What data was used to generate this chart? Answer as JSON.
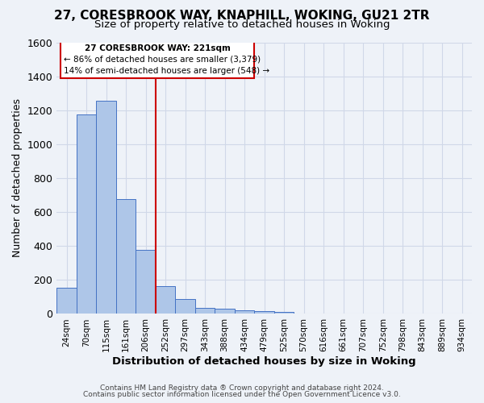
{
  "title": "27, CORESBROOK WAY, KNAPHILL, WOKING, GU21 2TR",
  "subtitle": "Size of property relative to detached houses in Woking",
  "xlabel": "Distribution of detached houses by size in Woking",
  "ylabel": "Number of detached properties",
  "bar_values": [
    155,
    1175,
    1255,
    675,
    375,
    165,
    90,
    35,
    30,
    20,
    15,
    12,
    0,
    0,
    0,
    0,
    0,
    0,
    0,
    0,
    0
  ],
  "categories": [
    "24sqm",
    "70sqm",
    "115sqm",
    "161sqm",
    "206sqm",
    "252sqm",
    "297sqm",
    "343sqm",
    "388sqm",
    "434sqm",
    "479sqm",
    "525sqm",
    "570sqm",
    "616sqm",
    "661sqm",
    "707sqm",
    "752sqm",
    "798sqm",
    "843sqm",
    "889sqm",
    "934sqm"
  ],
  "bar_color": "#aec6e8",
  "bar_edge_color": "#4472c4",
  "grid_color": "#d0d8e8",
  "background_color": "#eef2f8",
  "annotation_box_color": "#ffffff",
  "annotation_border_color": "#cc0000",
  "red_line_x": 4.5,
  "red_line_color": "#cc0000",
  "annotation_text_line1": "27 CORESBROOK WAY: 221sqm",
  "annotation_text_line2": "← 86% of detached houses are smaller (3,379)",
  "annotation_text_line3": "14% of semi-detached houses are larger (548) →",
  "ylim": [
    0,
    1600
  ],
  "yticks": [
    0,
    200,
    400,
    600,
    800,
    1000,
    1200,
    1400,
    1600
  ],
  "footnote1": "Contains HM Land Registry data ® Crown copyright and database right 2024.",
  "footnote2": "Contains public sector information licensed under the Open Government Licence v3.0."
}
